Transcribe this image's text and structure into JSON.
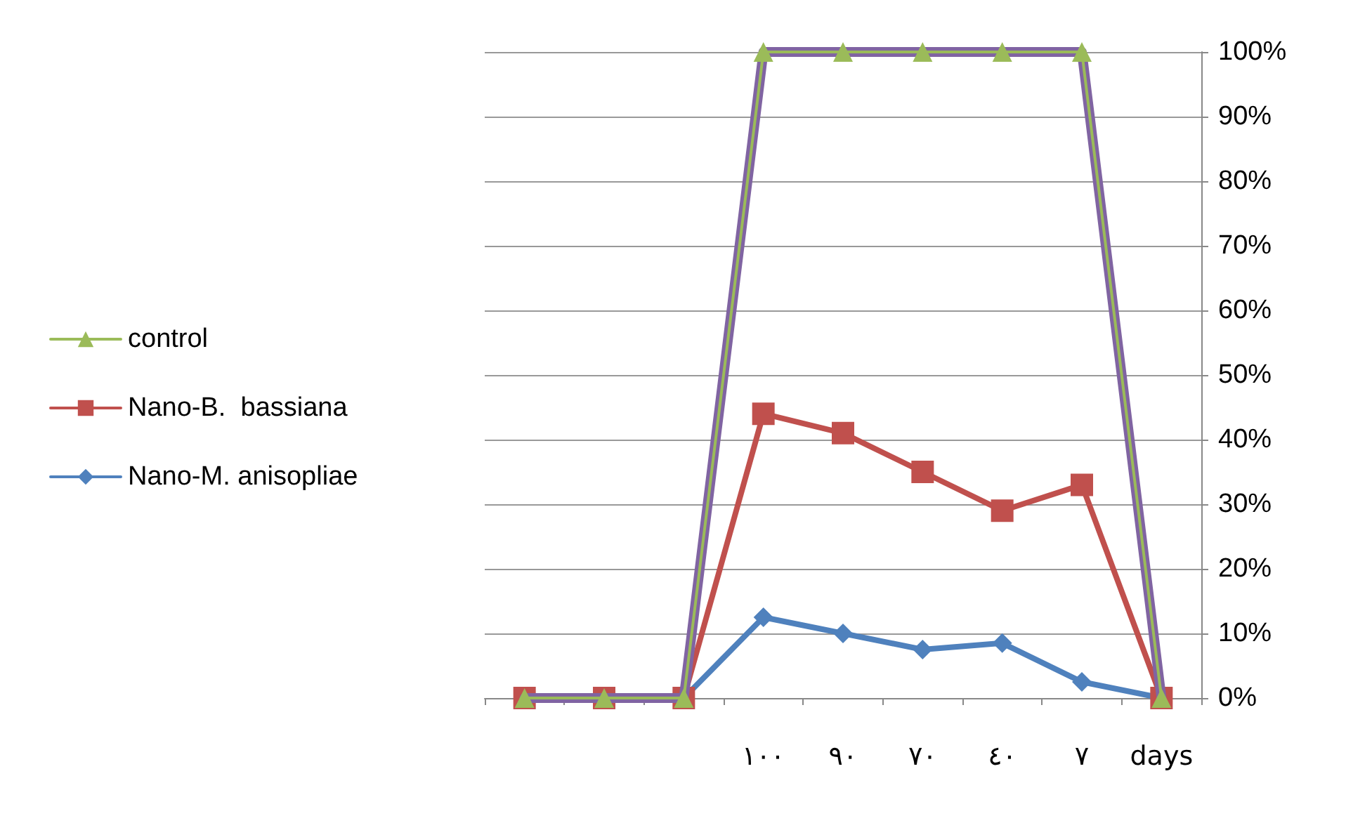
{
  "chart_data": {
    "type": "line",
    "categories": [
      null,
      null,
      null,
      "١٠٠",
      "٩٠",
      "٧٠",
      "٤٠",
      "٧",
      "days"
    ],
    "series": [
      {
        "name": "control",
        "color": "#9bbb59",
        "marker": "triangle",
        "values": [
          0,
          0,
          0,
          100,
          100,
          100,
          100,
          100,
          0
        ]
      },
      {
        "color": "#8064a2",
        "marker": "none",
        "values": [
          0,
          0,
          0,
          100,
          100,
          100,
          100,
          100,
          0
        ]
      },
      {
        "name": "Nano-B.  bassiana",
        "color": "#c0504d",
        "marker": "square",
        "values": [
          0,
          0,
          0,
          44,
          41,
          35,
          29,
          33,
          0
        ]
      },
      {
        "name": "Nano-M. anisopliae",
        "color": "#4f81bd",
        "marker": "diamond",
        "values": [
          0,
          0,
          0,
          12.5,
          10,
          7.5,
          8.5,
          2.5,
          0
        ]
      }
    ],
    "ylim": [
      0,
      100
    ],
    "yticks": [
      {
        "value": 0,
        "label": "0%"
      },
      {
        "value": 10,
        "label": "10%"
      },
      {
        "value": 20,
        "label": "20%"
      },
      {
        "value": 30,
        "label": "30%"
      },
      {
        "value": 40,
        "label": "40%"
      },
      {
        "value": 50,
        "label": "50%"
      },
      {
        "value": 60,
        "label": "60%"
      },
      {
        "value": 70,
        "label": "70%"
      },
      {
        "value": 80,
        "label": "80%"
      },
      {
        "value": 90,
        "label": "90%"
      },
      {
        "value": 100,
        "label": "100%"
      }
    ],
    "grid": "y",
    "legend": "left"
  }
}
